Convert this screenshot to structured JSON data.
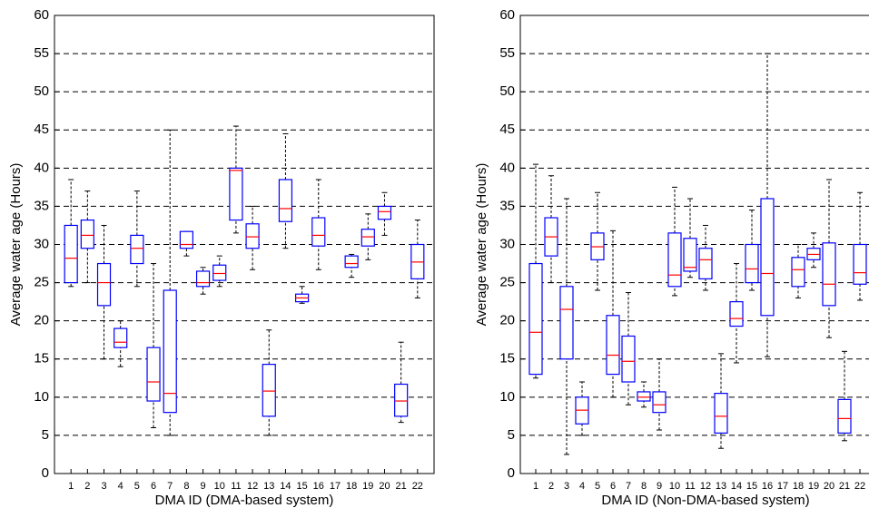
{
  "chart_data": [
    {
      "type": "box",
      "xlabel": "DMA ID (DMA-based system)",
      "ylabel": "Average water age (Hours)",
      "x": [
        1,
        2,
        3,
        4,
        5,
        6,
        7,
        8,
        9,
        10,
        11,
        12,
        13,
        14,
        15,
        16,
        17,
        18,
        19,
        20,
        21,
        22
      ],
      "xlim": [
        0,
        23
      ],
      "xticks": [
        1,
        2,
        3,
        4,
        5,
        6,
        7,
        8,
        9,
        10,
        11,
        12,
        13,
        14,
        15,
        16,
        17,
        18,
        19,
        20,
        21,
        22
      ],
      "ylim": [
        0,
        60
      ],
      "yticks": [
        0,
        5,
        10,
        15,
        20,
        25,
        30,
        35,
        40,
        45,
        50,
        55,
        60
      ],
      "grid": true,
      "box_color": "#0000ff",
      "median_color": "#ff0000",
      "whisker_color": "#000000",
      "whislo": [
        24.5,
        25,
        15,
        14,
        24.5,
        6,
        5,
        28.5,
        23.5,
        24.5,
        31.5,
        26.7,
        5,
        29.5,
        22.3,
        26.7,
        null,
        25.7,
        28,
        31.2,
        6.7,
        23
      ],
      "q1": [
        25,
        29.5,
        22,
        16.5,
        27.5,
        9.5,
        8,
        29.5,
        24.5,
        25.3,
        33.2,
        29.5,
        7.5,
        33,
        22.5,
        29.8,
        null,
        27,
        29.8,
        33.3,
        7.5,
        25.5
      ],
      "med": [
        28.2,
        31.2,
        25,
        17.2,
        29.5,
        12,
        10.5,
        30,
        25,
        26.2,
        39.7,
        31,
        10.8,
        34.7,
        23,
        31.2,
        null,
        27.5,
        31,
        34.3,
        9.5,
        27.7
      ],
      "q3": [
        32.5,
        33.2,
        27.5,
        19,
        31.2,
        16.5,
        24,
        31.7,
        26.5,
        27.3,
        40,
        32.7,
        14.3,
        38.5,
        23.5,
        33.5,
        null,
        28.5,
        32,
        35,
        11.7,
        30
      ],
      "whishi": [
        38.5,
        37,
        32.5,
        20,
        37,
        27.5,
        45,
        31.7,
        27,
        28.5,
        45.5,
        35,
        18.8,
        44.5,
        24.5,
        38.5,
        null,
        28.7,
        34,
        36.8,
        17.2,
        33.2
      ]
    },
    {
      "type": "box",
      "xlabel": "DMA ID (Non-DMA-based system)",
      "ylabel": "Average water age (Hours)",
      "x": [
        1,
        2,
        3,
        4,
        5,
        6,
        7,
        8,
        9,
        10,
        11,
        12,
        13,
        14,
        15,
        16,
        17,
        18,
        19,
        20,
        21,
        22
      ],
      "xlim": [
        0,
        23
      ],
      "xticks": [
        1,
        2,
        3,
        4,
        5,
        6,
        7,
        8,
        9,
        10,
        11,
        12,
        13,
        14,
        15,
        16,
        17,
        18,
        19,
        20,
        21,
        22
      ],
      "ylim": [
        0,
        60
      ],
      "yticks": [
        0,
        5,
        10,
        15,
        20,
        25,
        30,
        35,
        40,
        45,
        50,
        55,
        60
      ],
      "grid": true,
      "box_color": "#0000ff",
      "median_color": "#ff0000",
      "whisker_color": "#000000",
      "whislo": [
        12.5,
        25,
        2.5,
        5,
        24,
        10,
        9,
        8.7,
        5.7,
        23.3,
        25.7,
        24,
        3.3,
        14.5,
        24,
        15.3,
        null,
        23,
        27,
        17.8,
        4.3,
        22.7
      ],
      "q1": [
        13,
        28.5,
        15,
        6.5,
        28,
        13,
        12,
        9.5,
        8,
        24.5,
        26.5,
        25.5,
        5.3,
        19.3,
        25,
        20.7,
        null,
        24.5,
        28,
        22,
        5.3,
        24.8
      ],
      "med": [
        18.5,
        31,
        21.5,
        8.3,
        29.7,
        15.5,
        14.7,
        10,
        9,
        26,
        27,
        28,
        7.5,
        20.3,
        26.8,
        26.2,
        null,
        26.7,
        28.7,
        24.8,
        7.2,
        26.3
      ],
      "q3": [
        27.5,
        33.5,
        24.5,
        10,
        31.5,
        20.7,
        18,
        10.7,
        10.7,
        31.5,
        30.8,
        29.5,
        10.5,
        22.5,
        30,
        36,
        null,
        28.3,
        29.5,
        30.2,
        9.7,
        30
      ],
      "whishi": [
        40.5,
        39,
        36,
        12,
        36.8,
        31.8,
        23.7,
        12,
        15,
        37.5,
        36,
        32.5,
        15.7,
        27.5,
        34.5,
        55,
        null,
        30,
        31.5,
        38.5,
        16,
        36.8
      ]
    }
  ]
}
